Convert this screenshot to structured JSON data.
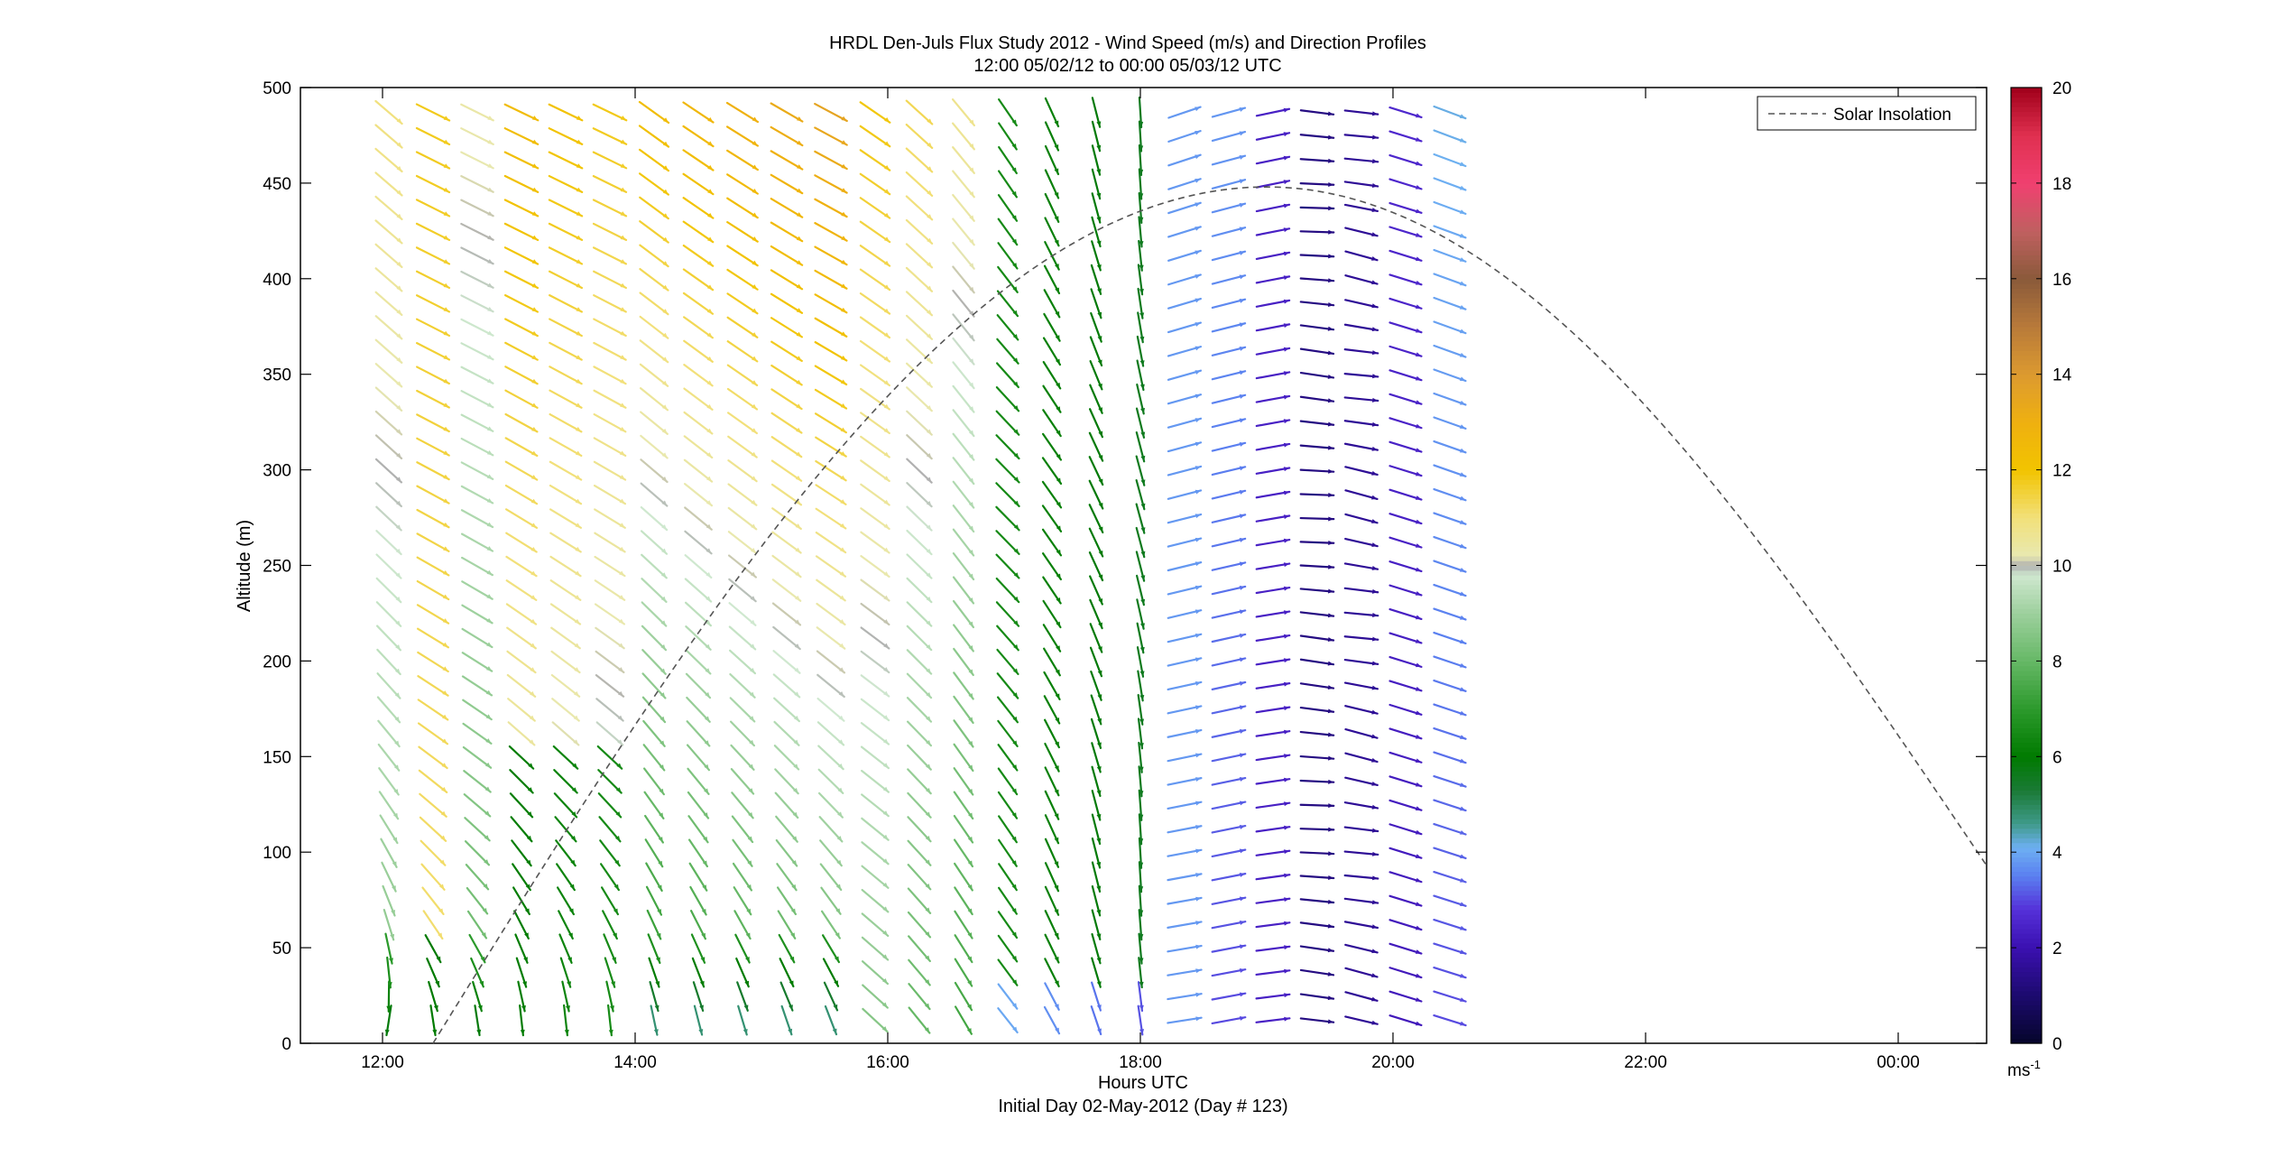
{
  "chart_data": {
    "type": "wind-barb-profile",
    "title": "HRDL Den-Juls Flux Study 2012 - Wind Speed (m/s) and Direction Profiles",
    "subtitle": "12:00 05/02/12 to 00:00 05/03/12  UTC",
    "xlabel": "Hours UTC",
    "xlabel2": "Initial Day 02-May-2012 (Day # 123)",
    "ylabel": "Altitude (m)",
    "xlim_hours": [
      11.35,
      24.7
    ],
    "ylim": [
      0,
      500
    ],
    "x_ticks": [
      {
        "value": 12,
        "label": "12:00"
      },
      {
        "value": 14,
        "label": "14:00"
      },
      {
        "value": 16,
        "label": "16:00"
      },
      {
        "value": 18,
        "label": "18:00"
      },
      {
        "value": 20,
        "label": "20:00"
      },
      {
        "value": 22,
        "label": "22:00"
      },
      {
        "value": 24,
        "label": "00:00"
      }
    ],
    "y_ticks": [
      0,
      50,
      100,
      150,
      200,
      250,
      300,
      350,
      400,
      450,
      500
    ],
    "colorbar": {
      "range": [
        0,
        20
      ],
      "ticks": [
        0,
        2,
        4,
        6,
        8,
        10,
        12,
        14,
        16,
        18,
        20
      ],
      "unit_base": "ms",
      "unit_exp": "-1"
    },
    "legend": {
      "entries": [
        "Solar Insolation"
      ],
      "position": "top-right"
    },
    "solar_insolation": {
      "style": "dashed",
      "color": "#555555",
      "start_hour": 12.4,
      "peak_hour": 19.0,
      "peak_altitude": 448,
      "end_hour": 24.7,
      "end_altitude": 93
    },
    "profile_hours": [
      12.05,
      12.4,
      12.75,
      13.1,
      13.45,
      13.8,
      14.15,
      14.5,
      14.85,
      15.2,
      15.55,
      15.9,
      16.25,
      16.6,
      16.95,
      17.3,
      17.65,
      18.0,
      18.35,
      18.7,
      19.05,
      19.4,
      19.75,
      20.1,
      20.45
    ],
    "altitude_step_m": 12.5,
    "profiles_note": "Each profile: arrows every 12.5 m from ~12 m to ~490 m; speed in m/s, direction in degrees (meteorological, wind-from)."
  },
  "colors": {
    "axis": "#000000",
    "solar_line": "#555555",
    "background": "#ffffff"
  }
}
